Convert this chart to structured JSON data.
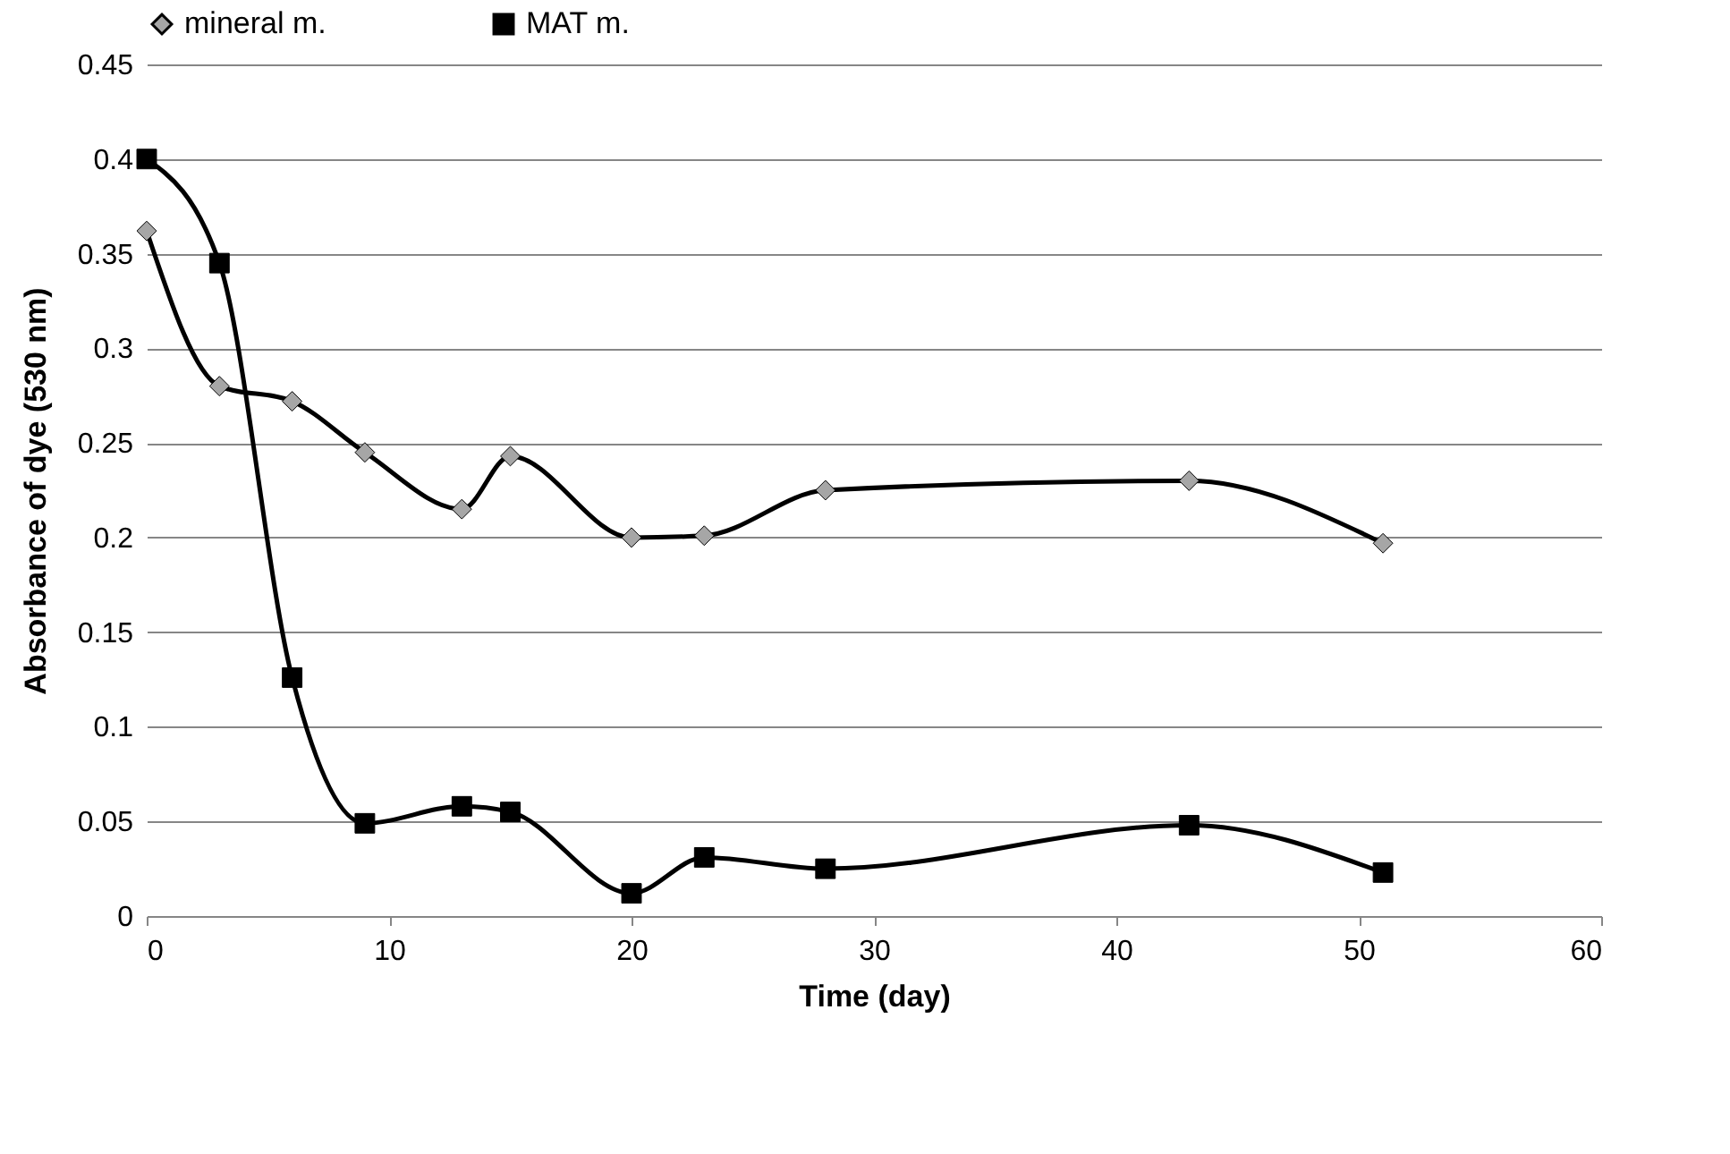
{
  "chart_data": {
    "type": "line",
    "xlabel": "Time (day)",
    "ylabel": "Absorbance of dye (530 nm)",
    "xlim": [
      0,
      60
    ],
    "xticks": [
      0,
      10,
      20,
      30,
      40,
      50,
      60
    ],
    "ylim": [
      0,
      0.45
    ],
    "yticks": [
      0,
      0.05,
      0.1,
      0.15,
      0.2,
      0.25,
      0.3,
      0.35,
      0.4,
      0.45
    ],
    "grid": "y",
    "legend": "top",
    "line_style": "solid",
    "x": [
      0,
      3,
      6,
      9,
      13,
      15,
      20,
      23,
      28,
      43,
      51
    ],
    "series": [
      {
        "name": "mineral m.",
        "color": "#a6a6a6",
        "marker": "diamond",
        "values": [
          0.362,
          0.28,
          0.272,
          0.245,
          0.215,
          0.243,
          0.2,
          0.201,
          0.225,
          0.23,
          0.197
        ]
      },
      {
        "name": "MAT m.",
        "color": "#000000",
        "marker": "square",
        "values": [
          0.4,
          0.345,
          0.126,
          0.049,
          0.058,
          0.055,
          0.012,
          0.031,
          0.025,
          0.048,
          0.023
        ]
      }
    ]
  }
}
